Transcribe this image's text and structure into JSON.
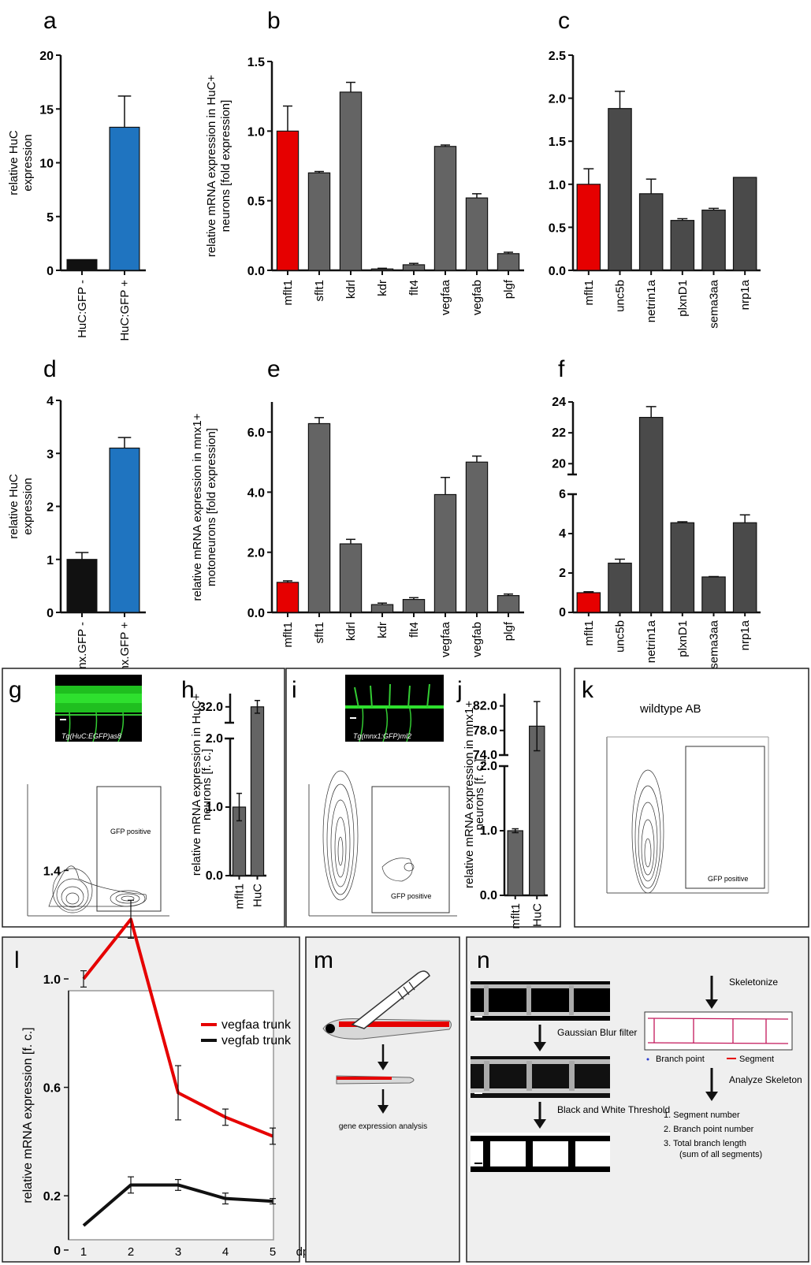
{
  "panel_labels": [
    "a",
    "b",
    "c",
    "d",
    "e",
    "f",
    "g",
    "h",
    "i",
    "j",
    "k",
    "l",
    "m",
    "n"
  ],
  "colors": {
    "red": "#e60000",
    "blue": "#1f74c0",
    "black": "#111111",
    "gray": "#646464",
    "darkgray": "#4a4a4a",
    "panel_bg": "#efefef"
  },
  "chart_data": [
    {
      "id": "a",
      "type": "bar",
      "ylabel": "relative HuC expression",
      "ylim": [
        0,
        20
      ],
      "yticks": [
        0,
        5,
        10,
        15,
        20
      ],
      "categories": [
        "HuC:GFP -",
        "HuC:GFP +"
      ],
      "values": [
        1.0,
        13.3
      ],
      "errors": [
        0,
        2.9
      ],
      "colors": [
        "black",
        "blue"
      ]
    },
    {
      "id": "b",
      "type": "bar",
      "ylabel": "relative mRNA expression in HuC+ neurons [fold expression]",
      "ylim": [
        0,
        1.5
      ],
      "yticks": [
        "0.0",
        "0.5",
        "1.0",
        "1.5"
      ],
      "categories": [
        "mflt1",
        "sflt1",
        "kdrl",
        "kdr",
        "flt4",
        "vegfaa",
        "vegfab",
        "plgf"
      ],
      "values": [
        1.0,
        0.7,
        1.28,
        0.01,
        0.04,
        0.89,
        0.52,
        0.12
      ],
      "errors": [
        0.18,
        0.01,
        0.07,
        0.005,
        0.01,
        0.01,
        0.03,
        0.01
      ],
      "colors": [
        "red",
        "gray",
        "gray",
        "gray",
        "gray",
        "gray",
        "gray",
        "gray"
      ]
    },
    {
      "id": "c",
      "type": "bar",
      "ylabel": "",
      "ylim": [
        0,
        2.5
      ],
      "yticks": [
        "0.0",
        "0.5",
        "1.0",
        "1.5",
        "2.0",
        "2.5"
      ],
      "categories": [
        "mflt1",
        "unc5b",
        "netrin1a",
        "plxnD1",
        "sema3aa",
        "nrp1a"
      ],
      "values": [
        1.0,
        1.88,
        0.89,
        0.58,
        0.7,
        1.08
      ],
      "errors": [
        0.18,
        0.2,
        0.17,
        0.02,
        0.02,
        0
      ],
      "colors": [
        "red",
        "darkgray",
        "darkgray",
        "darkgray",
        "darkgray",
        "darkgray"
      ]
    },
    {
      "id": "d",
      "type": "bar",
      "ylabel": "relative HuC expression",
      "ylim": [
        0,
        4
      ],
      "yticks": [
        0,
        1,
        2,
        3,
        4
      ],
      "categories": [
        "mnx.GFP -",
        "mnx.GFP +"
      ],
      "values": [
        1.0,
        3.1
      ],
      "errors": [
        0.13,
        0.2
      ],
      "colors": [
        "black",
        "blue"
      ]
    },
    {
      "id": "e",
      "type": "bar",
      "ylabel": "relative mRNA expression in mnx1+ motoneurons [fold expression]",
      "ylim": [
        0,
        7
      ],
      "yticks": [
        "0.0",
        "2.0",
        "4.0",
        "6.0"
      ],
      "categories": [
        "mflt1",
        "sflt1",
        "kdrl",
        "kdr",
        "flt4",
        "vegfaa",
        "vegfab",
        "plgf"
      ],
      "values": [
        1.0,
        6.28,
        2.28,
        0.26,
        0.43,
        3.92,
        5.0,
        0.56
      ],
      "errors": [
        0.05,
        0.2,
        0.15,
        0.05,
        0.06,
        0.57,
        0.2,
        0.05
      ],
      "colors": [
        "red",
        "gray",
        "gray",
        "gray",
        "gray",
        "gray",
        "gray",
        "gray"
      ]
    },
    {
      "id": "f",
      "type": "bar",
      "ylabel": "",
      "broken_axis": true,
      "yticks_lower": [
        0,
        2,
        4,
        6
      ],
      "yticks_upper": [
        20,
        22,
        24
      ],
      "categories": [
        "mflt1",
        "unc5b",
        "netrin1a",
        "plxnD1",
        "sema3aa",
        "nrp1a"
      ],
      "values": [
        1.0,
        2.5,
        23.0,
        4.55,
        1.8,
        4.55
      ],
      "errors": [
        0.05,
        0.2,
        0.7,
        0.05,
        0.02,
        0.4
      ],
      "colors": [
        "red",
        "darkgray",
        "darkgray",
        "darkgray",
        "darkgray",
        "darkgray"
      ]
    },
    {
      "id": "h",
      "type": "bar",
      "ylabel": "relative mRNA expression in HuC+ neurons [f. c.]",
      "broken_axis": true,
      "yticks_lower": [
        "0.0",
        "1.0",
        "2.0"
      ],
      "yticks_upper": [
        "32.0"
      ],
      "categories": [
        "mflt1",
        "HuC"
      ],
      "values": [
        1.0,
        32.0
      ],
      "errors": [
        0.2,
        1.2
      ],
      "colors": [
        "gray",
        "gray"
      ]
    },
    {
      "id": "j",
      "type": "bar",
      "ylabel": "relative mRNA expression in mnx1+ neurons [f. c.]",
      "broken_axis": true,
      "yticks_lower": [
        "0.0",
        "1.0",
        "2.0"
      ],
      "yticks_upper": [
        "74.0",
        "78.0",
        "82.0"
      ],
      "categories": [
        "mflt1",
        "HuC"
      ],
      "values": [
        1.0,
        78.7
      ],
      "errors": [
        0.03,
        4.0
      ],
      "colors": [
        "gray",
        "gray"
      ]
    },
    {
      "id": "l",
      "type": "line",
      "ylabel": "relative mRNA expression [f. c.]",
      "ylim": [
        0,
        1.4
      ],
      "yticks": [
        "0",
        "0.2",
        "0.6",
        "1.0",
        "1.4"
      ],
      "x": [
        1,
        2,
        3,
        4,
        5
      ],
      "xunit": "dpf",
      "series": [
        {
          "name": "vegfaa trunk",
          "color": "red",
          "values": [
            1.0,
            1.22,
            0.58,
            0.49,
            0.42
          ],
          "errors": [
            0.03,
            0.07,
            0.1,
            0.03,
            0.03
          ]
        },
        {
          "name": "vegfab trunk",
          "color": "black",
          "values": [
            0.09,
            0.24,
            0.24,
            0.19,
            0.18
          ],
          "errors": [
            0,
            0.03,
            0.02,
            0.02,
            0.01
          ]
        }
      ]
    }
  ],
  "panel_g": {
    "image_caption": "Tg(HuC:EGFP)as8",
    "gate_label": "GFP positive"
  },
  "panel_i": {
    "image_caption": "Tg(mnx1:GFP)ml2",
    "gate_label": "GFP positive"
  },
  "panel_k": {
    "title": "wildtype AB",
    "gate_label": "GFP positive"
  },
  "panel_m": {
    "caption": "gene expression analysis"
  },
  "panel_n": {
    "step1": "Gaussian Blur filter",
    "step2": "Black and White Threshold",
    "skeletonize": "Skeletonize",
    "legend_point": "Branch point",
    "legend_segment": "Segment",
    "analyze": "Analyze Skeleton",
    "list": [
      "1.   Segment number",
      "2.   Branch point number",
      "3.   Total branch length",
      "(sum of all segments)"
    ]
  }
}
